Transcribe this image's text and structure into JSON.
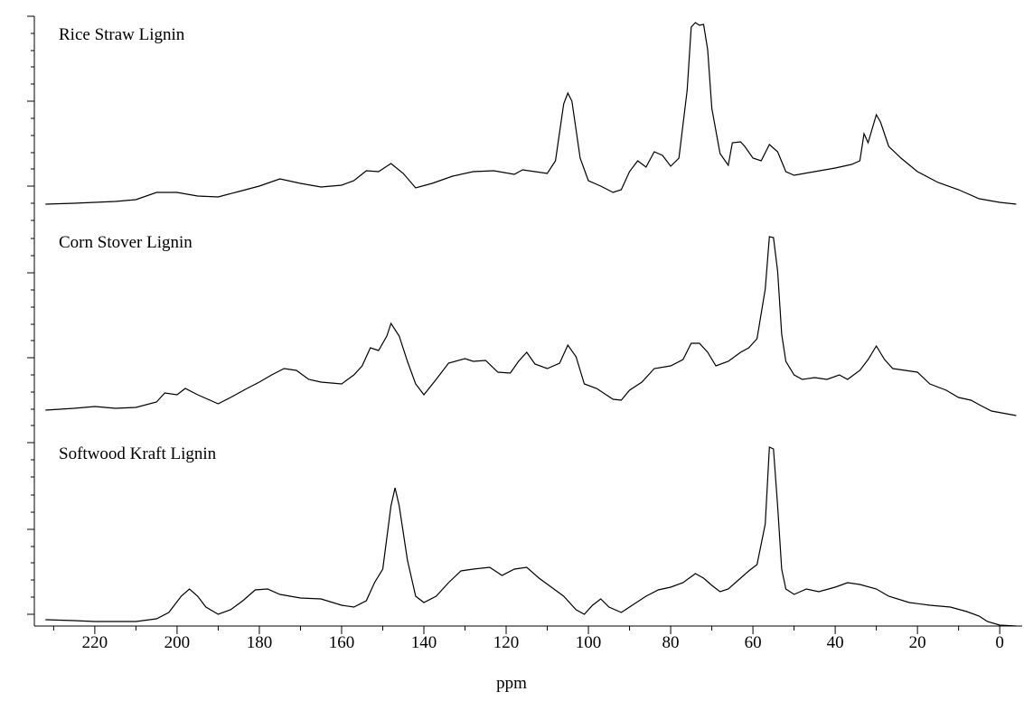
{
  "chart_data": {
    "type": "line",
    "x_label": "ppm",
    "xlim": [
      234.7,
      -5.9
    ],
    "ylim": [
      0,
      675
    ],
    "xticks": [
      0,
      20,
      40,
      60,
      80,
      100,
      120,
      140,
      160,
      180,
      200,
      220
    ],
    "xminorticks": [
      10,
      30,
      50,
      70,
      90,
      110,
      130,
      150,
      170,
      190,
      210,
      230
    ],
    "yticks": [
      13,
      107,
      203,
      297,
      391,
      487,
      581,
      675
    ],
    "yminorticks": [
      32,
      51,
      70,
      88,
      126,
      145,
      165,
      184,
      222,
      240,
      259,
      278,
      316,
      334,
      353,
      372,
      410,
      429,
      449,
      468,
      506,
      524,
      543,
      562,
      600,
      619,
      637,
      656
    ],
    "series": [
      {
        "name": "Rice Straw Lignin",
        "color": "#000000",
        "x": [
          232,
          225,
          220,
          215,
          210,
          205,
          200,
          195,
          190,
          185,
          180,
          175,
          170,
          165,
          160,
          157,
          154,
          151,
          148,
          145,
          142,
          138,
          133,
          128,
          123,
          118,
          116,
          113,
          110,
          108,
          106,
          105,
          104,
          102,
          100,
          97,
          94,
          92,
          90,
          88,
          86,
          84,
          82,
          80,
          78,
          76,
          75,
          74,
          73,
          72,
          71,
          70,
          68,
          66,
          65,
          63,
          62,
          60,
          58,
          56,
          54,
          52,
          50,
          45,
          40,
          36,
          34,
          33,
          32,
          30,
          29,
          27,
          24,
          20,
          15,
          10,
          5,
          0,
          -4
        ],
        "values": [
          467,
          468,
          469,
          470,
          472,
          480,
          480,
          476,
          475,
          481,
          487,
          495,
          490,
          486,
          488,
          493,
          504,
          503,
          512,
          501,
          485,
          490,
          498,
          503,
          504,
          500,
          505,
          503,
          501,
          515,
          578,
          590,
          581,
          518,
          493,
          487,
          480,
          483,
          503,
          515,
          508,
          525,
          521,
          509,
          518,
          593,
          663,
          668,
          665,
          666,
          638,
          573,
          523,
          510,
          535,
          536,
          531,
          518,
          515,
          533,
          525,
          503,
          499,
          503,
          507,
          511,
          515,
          545,
          535,
          566,
          558,
          531,
          518,
          503,
          491,
          483,
          473,
          469,
          467
        ]
      },
      {
        "name": "Corn Stover Lignin",
        "color": "#000000",
        "x": [
          232,
          225,
          220,
          215,
          210,
          205,
          203,
          200,
          198,
          195,
          190,
          187,
          183,
          180,
          177,
          174,
          171,
          168,
          165,
          160,
          157,
          155,
          153,
          151,
          149,
          148,
          146,
          144,
          142,
          140,
          137,
          134,
          130,
          128,
          125,
          122,
          119,
          117,
          115,
          113,
          110,
          107,
          105,
          103,
          101,
          98,
          94,
          92,
          90,
          87,
          84,
          80,
          77,
          75,
          73,
          71,
          69,
          66,
          63,
          61,
          59,
          57,
          56,
          55,
          54,
          53,
          52,
          50,
          48,
          45,
          42,
          39,
          37,
          34,
          32,
          30,
          28,
          26,
          23,
          20,
          17,
          13,
          10,
          7,
          5,
          2,
          -4
        ],
        "values": [
          239,
          241,
          243,
          241,
          242,
          248,
          258,
          256,
          263,
          256,
          246,
          253,
          263,
          270,
          278,
          285,
          283,
          273,
          270,
          268,
          278,
          288,
          308,
          305,
          321,
          335,
          321,
          293,
          268,
          256,
          273,
          291,
          296,
          293,
          294,
          281,
          280,
          293,
          303,
          290,
          285,
          291,
          311,
          298,
          268,
          263,
          251,
          250,
          261,
          270,
          285,
          288,
          295,
          313,
          313,
          303,
          288,
          293,
          303,
          308,
          318,
          373,
          431,
          430,
          393,
          323,
          293,
          278,
          273,
          275,
          273,
          278,
          273,
          283,
          295,
          310,
          295,
          285,
          283,
          281,
          268,
          261,
          253,
          250,
          245,
          238,
          233
        ]
      },
      {
        "name": "Softwood Kraft Lignin",
        "color": "#000000",
        "x": [
          232,
          225,
          220,
          210,
          205,
          202,
          199,
          197,
          195,
          193,
          190,
          187,
          184,
          181,
          178,
          175,
          170,
          165,
          160,
          157,
          154,
          152,
          150,
          148,
          147,
          146,
          144,
          142,
          140,
          137,
          134,
          131,
          128,
          124,
          121,
          118,
          115,
          112,
          109,
          106,
          103,
          101,
          99,
          97,
          95,
          92,
          90,
          86,
          83,
          80,
          77,
          74,
          72,
          70,
          68,
          66,
          63,
          61,
          59,
          57,
          56,
          55,
          54,
          53,
          52,
          50,
          47,
          44,
          40,
          37,
          34,
          30,
          27,
          22,
          17,
          12,
          8,
          5,
          3,
          0,
          -4
        ],
        "values": [
          7,
          6,
          5,
          5,
          8,
          15,
          33,
          41,
          33,
          21,
          13,
          18,
          28,
          40,
          41,
          35,
          31,
          30,
          23,
          21,
          28,
          48,
          63,
          133,
          153,
          133,
          73,
          33,
          26,
          33,
          48,
          61,
          63,
          65,
          56,
          63,
          65,
          53,
          43,
          33,
          18,
          13,
          23,
          30,
          21,
          15,
          21,
          33,
          40,
          43,
          48,
          58,
          53,
          45,
          38,
          41,
          53,
          61,
          68,
          113,
          198,
          196,
          133,
          63,
          41,
          35,
          41,
          38,
          43,
          48,
          46,
          41,
          33,
          26,
          23,
          21,
          16,
          11,
          5,
          1,
          0
        ]
      }
    ]
  }
}
